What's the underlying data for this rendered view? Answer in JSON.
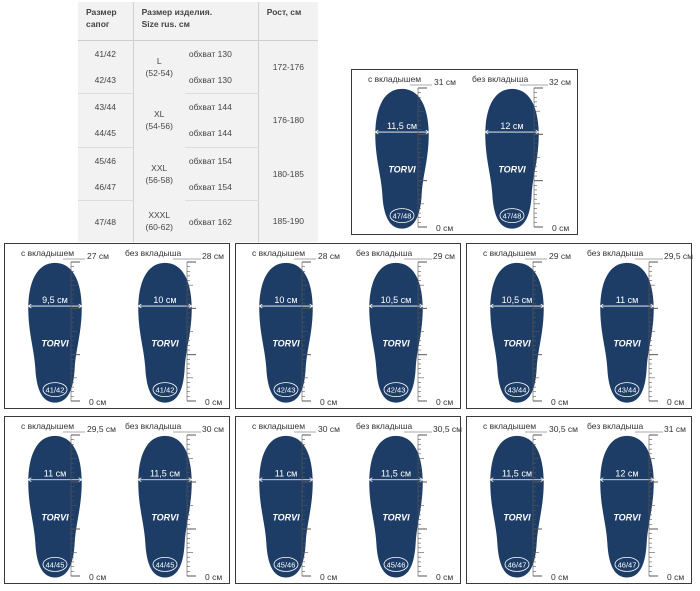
{
  "table": {
    "headers": {
      "boot": [
        "Размер",
        "сапог"
      ],
      "size": [
        "Размер изделия.",
        "Size rus. см"
      ],
      "height": "Рост, см"
    },
    "groups": [
      {
        "rows": [
          {
            "boot": "41/42",
            "girth": "обхват 130"
          },
          {
            "boot": "42/43",
            "girth": "обхват 130"
          }
        ],
        "size": [
          "L",
          "(52-54)"
        ],
        "height": "172-176"
      },
      {
        "rows": [
          {
            "boot": "43/44",
            "girth": "обхват 144"
          },
          {
            "boot": "44/45",
            "girth": "обхват 144"
          }
        ],
        "size": [
          "XL",
          "(54-56)"
        ],
        "height": "176-180"
      },
      {
        "rows": [
          {
            "boot": "45/46",
            "girth": "обхват 154"
          },
          {
            "boot": "46/47",
            "girth": "обхват 154"
          }
        ],
        "size": [
          "XXL",
          "(56-58)"
        ],
        "height": "180-185"
      },
      {
        "rows": [
          {
            "boot": "47/48",
            "girth": "обхват 162"
          }
        ],
        "size": [
          "XXXL",
          "(60-62)"
        ],
        "height": "185-190"
      }
    ]
  },
  "labels": {
    "with_insert": "с вкладышем",
    "without_insert": "без вкладыша",
    "zero": "0 см",
    "brand": "TORVI"
  },
  "colors": {
    "insole": "#1e3d66",
    "ruler": "#555555",
    "border": "#3a3a3a"
  },
  "panels": [
    {
      "id": "47-48",
      "size": "47/48",
      "with": {
        "length": "31 см",
        "width": "11,5 см"
      },
      "without": {
        "length": "32 см",
        "width": "12 см"
      }
    },
    {
      "id": "41-42",
      "size": "41/42",
      "with": {
        "length": "27 см",
        "width": "9,5 см"
      },
      "without": {
        "length": "28 см",
        "width": "10 см"
      }
    },
    {
      "id": "42-43",
      "size": "42/43",
      "with": {
        "length": "28 см",
        "width": "10 см"
      },
      "without": {
        "length": "29 см",
        "width": "10,5 см"
      }
    },
    {
      "id": "43-44",
      "size": "43/44",
      "with": {
        "length": "29 см",
        "width": "10,5 см"
      },
      "without": {
        "length": "29,5 см",
        "width": "11 см"
      }
    },
    {
      "id": "44-45",
      "size": "44/45",
      "with": {
        "length": "29,5 см",
        "width": "11 см"
      },
      "without": {
        "length": "30 см",
        "width": "11,5 см"
      }
    },
    {
      "id": "45-46",
      "size": "45/46",
      "with": {
        "length": "30 см",
        "width": "11 см"
      },
      "without": {
        "length": "30,5 см",
        "width": "11,5 см"
      }
    },
    {
      "id": "46-47",
      "size": "46/47",
      "with": {
        "length": "30,5 см",
        "width": "11,5 см"
      },
      "without": {
        "length": "31 см",
        "width": "12 см"
      }
    }
  ]
}
